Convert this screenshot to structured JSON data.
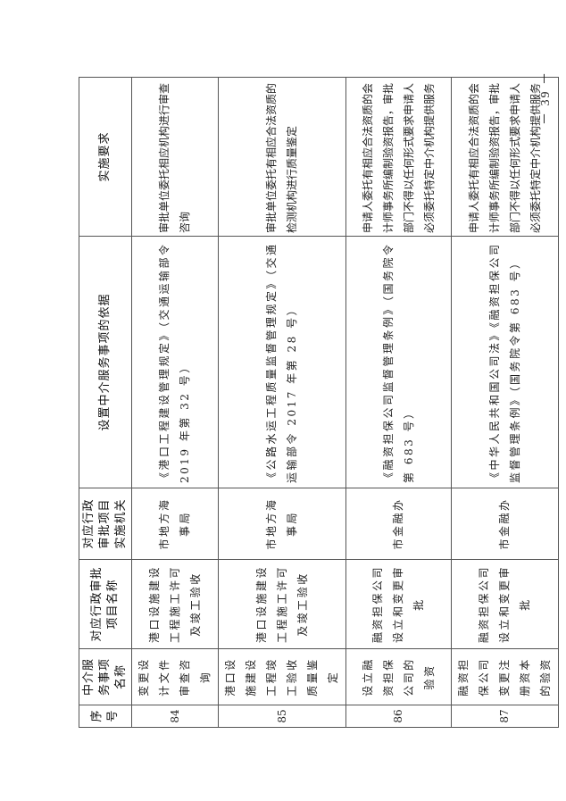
{
  "table": {
    "headers": [
      "序号",
      "中介服务事项名称",
      "对应行政审批项目名称",
      "对应行政审批项目实施机关",
      "设置中介服务事项的依据",
      "实施要求"
    ],
    "rows": [
      {
        "no": "84",
        "service": "变更设计文件审查咨询",
        "approval": "港口设施建设工程施工许可及竣工验收",
        "authority": "市地方海事局",
        "basis": "《港口工程建设管理规定》（交通运输部令 2019 年第 32 号）",
        "requirement": "审批单位委托相应机构进行审查咨询"
      },
      {
        "no": "85",
        "service": "港口设施建设工程竣工验收质量鉴定",
        "approval": "港口设施建设工程施工许可及竣工验收",
        "authority": "市地方海事局",
        "basis": "《公路水运工程质量监督管理规定》（交通运输部令 2017 年第 28 号）",
        "requirement": "审批单位委托有相应合法资质的检测机构进行质量鉴定"
      },
      {
        "no": "86",
        "service": "设立融资担保公司的验资",
        "approval": "融资担保公司设立和变更审批",
        "authority": "市金融办",
        "basis": "《融资担保公司监督管理条例》（国务院令第 683 号）",
        "requirement": "申请人委托有相应合法资质的会计师事务所编制验资报告，审批部门不得以任何形式要求申请人必须委托特定中介机构提供服务"
      },
      {
        "no": "87",
        "service": "融资担保公司变更注册资本的验资",
        "approval": "融资担保公司设立和变更审批",
        "authority": "市金融办",
        "basis": "《中华人民共和国公司法》《融资担保公司监督管理条例》（国务院令第 683 号）",
        "requirement": "申请人委托有相应合法资质的会计师事务所编制验资报告，审批部门不得以任何形式要求申请人必须委托特定中介机构提供服务"
      }
    ]
  },
  "page_number": "－ 39 －"
}
